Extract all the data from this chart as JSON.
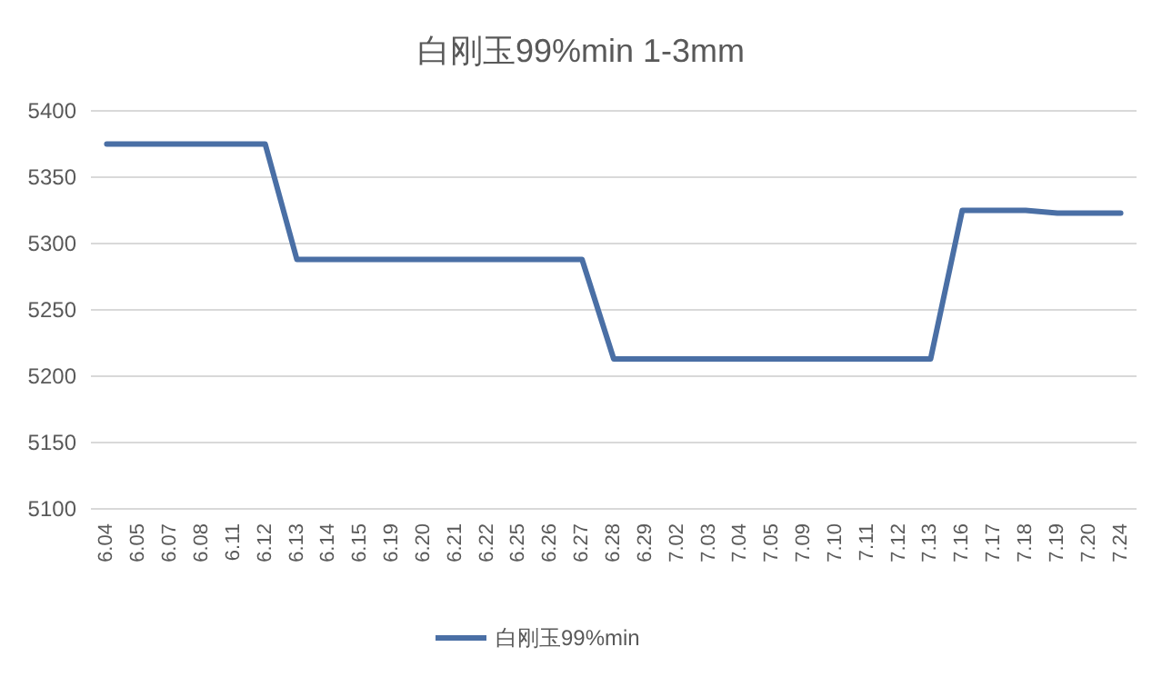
{
  "chart_data": {
    "type": "line",
    "title": "白刚玉99%min 1-3mm",
    "categories": [
      "6.04",
      "6.05",
      "6.07",
      "6.08",
      "6.11",
      "6.12",
      "6.13",
      "6.14",
      "6.15",
      "6.19",
      "6.20",
      "6.21",
      "6.22",
      "6.25",
      "6.26",
      "6.27",
      "6.28",
      "6.29",
      "7.02",
      "7.03",
      "7.04",
      "7.05",
      "7.09",
      "7.10",
      "7.11",
      "7.12",
      "7.13",
      "7.16",
      "7.17",
      "7.18",
      "7.19",
      "7.20",
      "7.24"
    ],
    "series": [
      {
        "name": "白刚玉99%min",
        "color": "#4a6fa5",
        "values": [
          5375,
          5375,
          5375,
          5375,
          5375,
          5375,
          5288,
          5288,
          5288,
          5288,
          5288,
          5288,
          5288,
          5288,
          5288,
          5288,
          5213,
          5213,
          5213,
          5213,
          5213,
          5213,
          5213,
          5213,
          5213,
          5213,
          5213,
          5325,
          5325,
          5325,
          5323,
          5323,
          5323
        ]
      }
    ],
    "ylim": [
      5100,
      5400
    ],
    "yticks": [
      5100,
      5150,
      5200,
      5250,
      5300,
      5350,
      5400
    ],
    "grid": "y",
    "legend": "bottom",
    "marker": "none",
    "line_style": "solid"
  }
}
